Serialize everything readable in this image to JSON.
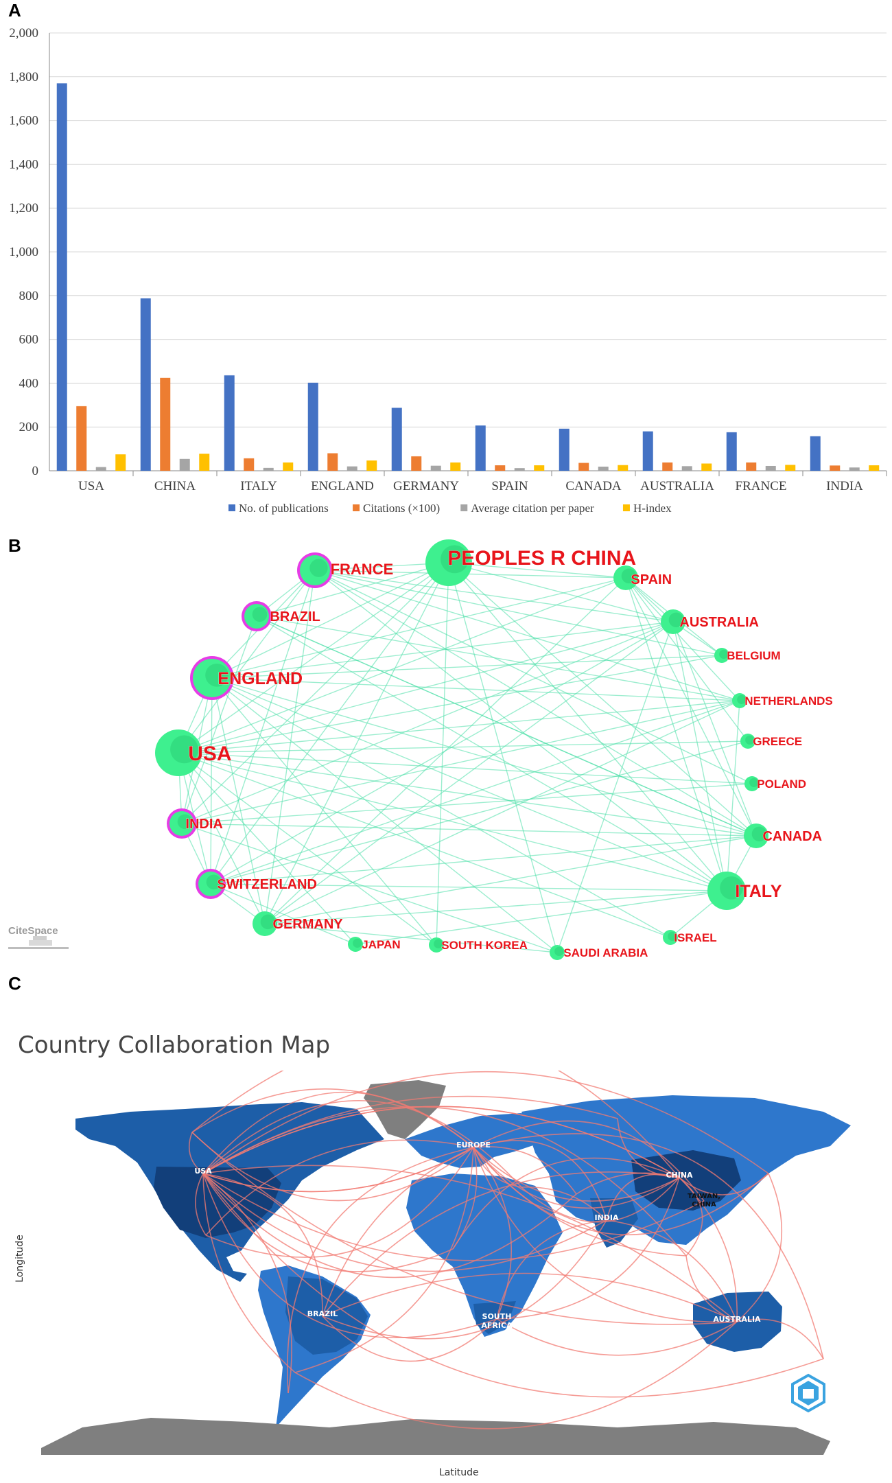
{
  "panels": {
    "a": "A",
    "b": "B",
    "c": "C"
  },
  "chart_data": [
    {
      "type": "bar",
      "categories": [
        "USA",
        "CHINA",
        "ITALY",
        "ENGLAND",
        "GERMANY",
        "SPAIN",
        "CANADA",
        "AUSTRALIA",
        "FRANCE",
        "INDIA"
      ],
      "series": [
        {
          "name": "No. of publications",
          "color": "#4472C4",
          "values": [
            1770,
            788,
            436,
            402,
            288,
            207,
            192,
            180,
            176,
            158
          ]
        },
        {
          "name": "Citations (×100)",
          "color": "#ED7D31",
          "values": [
            295,
            424,
            57,
            80,
            66,
            25,
            36,
            38,
            38,
            24
          ]
        },
        {
          "name": "Average citation per paper",
          "color": "#A5A5A5",
          "values": [
            17,
            54,
            13,
            20,
            23,
            12,
            19,
            21,
            22,
            15
          ]
        },
        {
          "name": "H-index",
          "color": "#FFC000",
          "values": [
            75,
            78,
            38,
            47,
            38,
            25,
            26,
            33,
            27,
            25
          ]
        }
      ],
      "ylim": [
        0,
        2000
      ],
      "yticks": [
        "0",
        "200",
        "400",
        "600",
        "800",
        "1,000",
        "1,200",
        "1,400",
        "1,600",
        "1,800",
        "2,000"
      ],
      "legend": "bottom",
      "grid": true
    }
  ],
  "network": {
    "watermark": "CiteSpace",
    "nodes": [
      {
        "label": "PEOPLES R CHINA",
        "size": "xl",
        "ring": false
      },
      {
        "label": "FRANCE",
        "size": "m",
        "ring": true
      },
      {
        "label": "SPAIN",
        "size": "s",
        "ring": false
      },
      {
        "label": "BRAZIL",
        "size": "s",
        "ring": true
      },
      {
        "label": "AUSTRALIA",
        "size": "s",
        "ring": false
      },
      {
        "label": "BELGIUM",
        "size": "xs",
        "ring": false
      },
      {
        "label": "ENGLAND",
        "size": "l",
        "ring": true
      },
      {
        "label": "NETHERLANDS",
        "size": "xs",
        "ring": false
      },
      {
        "label": "USA",
        "size": "xl",
        "ring": false
      },
      {
        "label": "GREECE",
        "size": "xs",
        "ring": false
      },
      {
        "label": "POLAND",
        "size": "xs",
        "ring": false
      },
      {
        "label": "INDIA",
        "size": "s",
        "ring": true
      },
      {
        "label": "CANADA",
        "size": "s",
        "ring": false
      },
      {
        "label": "SWITZERLAND",
        "size": "s",
        "ring": true
      },
      {
        "label": "ITALY",
        "size": "l",
        "ring": false
      },
      {
        "label": "GERMANY",
        "size": "s",
        "ring": false
      },
      {
        "label": "ISRAEL",
        "size": "xs",
        "ring": false
      },
      {
        "label": "JAPAN",
        "size": "xs",
        "ring": false
      },
      {
        "label": "SOUTH KOREA",
        "size": "xs",
        "ring": false
      },
      {
        "label": "SAUDI ARABIA",
        "size": "xs",
        "ring": false
      }
    ]
  },
  "map": {
    "title": "Country Collaboration Map",
    "x_label": "Latitude",
    "y_label": "Longitude",
    "labels": [
      "USA",
      "EUROPE",
      "CHINA",
      "TAIWAN, CHINA",
      "INDIA",
      "BRAZIL",
      "SOUTH AFRICA",
      "AUSTRALIA"
    ]
  },
  "colors": {
    "node": "#3EF08F",
    "ring": "#E63CE6",
    "node_label": "#E8151B",
    "edge": "#4CE0A8",
    "ocean": "#ffffff",
    "land_dark": "#1D5EA8",
    "land_mid": "#2E77CC",
    "land_grey": "#7F7F7F",
    "arc": "#F27B73"
  }
}
